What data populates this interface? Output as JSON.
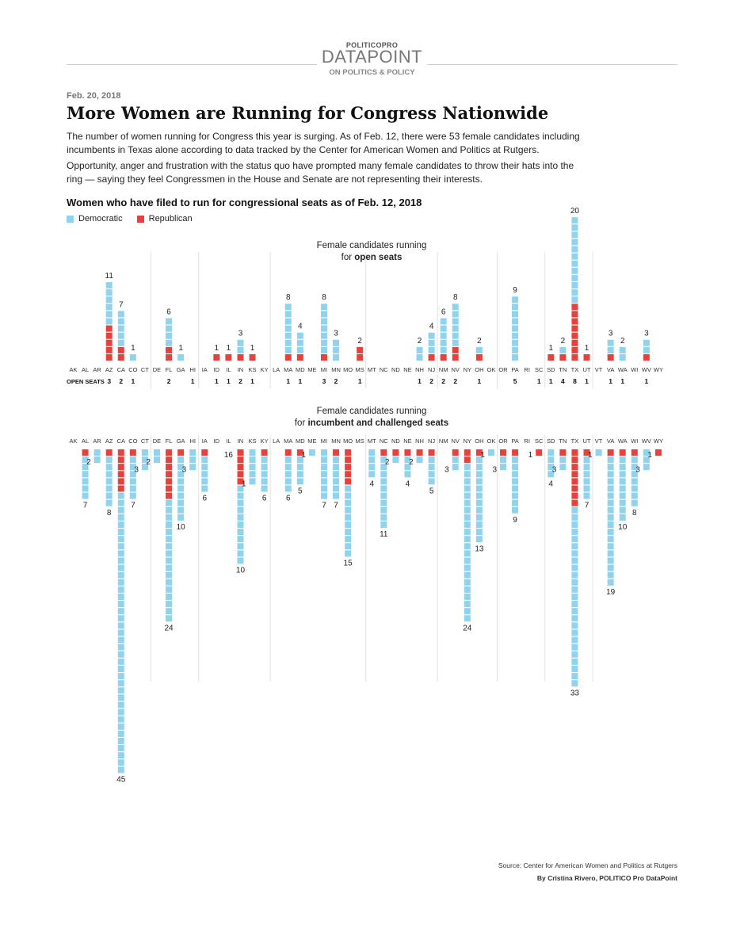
{
  "header": {
    "brand_politico": "POLITICOPRO",
    "brand_datapoint": "DATAPOINT",
    "brand_sub": "ON POLITICS & POLICY",
    "date": "Feb. 20, 2018",
    "title": "More Women are Running for Congress Nationwide",
    "paragraph1": "The number of women running for Congress this year is surging. As of Feb. 12, there were 53 female candidates including incumbents in Texas alone according to data tracked by the Center for American Women and Politics at Rutgers.",
    "paragraph2": "Opportunity, anger and frustration with the status quo have prompted many female candidates to throw their hats into the ring — saying they feel Congressmen in the House and Senate are not representing their interests.",
    "subtitle": "Women who have filed to run for congressional seats as of Feb. 12, 2018"
  },
  "legend": {
    "dem_label": "Democratic",
    "rep_label": "Republican"
  },
  "colors": {
    "dem": "#8fd3ef",
    "rep": "#e8413b",
    "grid": "#e2e2e2"
  },
  "footer": {
    "source": "Source: Center for American Women and Politics at Rutgers",
    "byline": "By Cristina Rivero, POLITICO Pro DataPoint"
  },
  "chart_data": [
    {
      "type": "waffle-column",
      "title_line1": "Female candidates running",
      "title_pre": "for ",
      "title_bold": "open seats",
      "open_seats_label": "OPEN SEATS",
      "states": [
        "AK",
        "AL",
        "AR",
        "AZ",
        "CA",
        "CO",
        "CT",
        "DE",
        "FL",
        "GA",
        "HI",
        "IA",
        "ID",
        "IL",
        "IN",
        "KS",
        "KY",
        "LA",
        "MA",
        "MD",
        "ME",
        "MI",
        "MN",
        "MO",
        "MS",
        "MT",
        "NC",
        "ND",
        "NE",
        "NH",
        "NJ",
        "NM",
        "NV",
        "NY",
        "OH",
        "OK",
        "OR",
        "PA",
        "RI",
        "SC",
        "SD",
        "TN",
        "TX",
        "UT",
        "VT",
        "VA",
        "WA",
        "WI",
        "WV",
        "WY"
      ],
      "series": [
        {
          "name": "Democratic",
          "values": [
            0,
            0,
            0,
            6,
            5,
            1,
            0,
            0,
            4,
            1,
            0,
            0,
            0,
            0,
            2,
            0,
            0,
            0,
            7,
            3,
            0,
            7,
            3,
            0,
            0,
            0,
            0,
            0,
            0,
            2,
            3,
            5,
            6,
            0,
            1,
            0,
            0,
            9,
            0,
            0,
            0,
            1,
            12,
            0,
            0,
            2,
            2,
            0,
            2,
            0
          ]
        },
        {
          "name": "Republican",
          "values": [
            0,
            0,
            0,
            5,
            2,
            0,
            0,
            0,
            2,
            0,
            0,
            0,
            1,
            1,
            1,
            1,
            0,
            0,
            1,
            1,
            0,
            1,
            0,
            0,
            2,
            0,
            0,
            0,
            0,
            0,
            1,
            1,
            2,
            0,
            1,
            0,
            0,
            0,
            0,
            0,
            1,
            1,
            8,
            1,
            0,
            1,
            0,
            0,
            1,
            0
          ]
        }
      ],
      "totals": [
        0,
        0,
        0,
        11,
        7,
        1,
        0,
        0,
        6,
        1,
        0,
        0,
        1,
        1,
        3,
        1,
        0,
        0,
        8,
        4,
        0,
        8,
        3,
        0,
        2,
        0,
        0,
        0,
        0,
        2,
        4,
        6,
        8,
        0,
        2,
        0,
        0,
        9,
        0,
        0,
        1,
        2,
        20,
        1,
        0,
        3,
        2,
        0,
        3,
        0
      ],
      "open_seats": [
        0,
        0,
        0,
        3,
        2,
        1,
        0,
        0,
        2,
        0,
        1,
        0,
        1,
        1,
        2,
        1,
        0,
        0,
        1,
        1,
        0,
        3,
        2,
        0,
        1,
        0,
        0,
        0,
        0,
        1,
        2,
        2,
        2,
        0,
        1,
        0,
        0,
        5,
        0,
        1,
        1,
        4,
        8,
        1,
        0,
        1,
        1,
        0,
        1,
        0
      ]
    },
    {
      "type": "waffle-column",
      "title_line1": "Female candidates running",
      "title_pre": "for ",
      "title_bold": "incumbent and challenged seats",
      "states": [
        "AK",
        "AL",
        "AR",
        "AZ",
        "CA",
        "CO",
        "CT",
        "DE",
        "FL",
        "GA",
        "HI",
        "IA",
        "ID",
        "IL",
        "IN",
        "KS",
        "KY",
        "LA",
        "MA",
        "MD",
        "ME",
        "MI",
        "MN",
        "MO",
        "MS",
        "MT",
        "NC",
        "ND",
        "NE",
        "NH",
        "NJ",
        "NM",
        "NV",
        "NY",
        "OH",
        "OK",
        "OR",
        "PA",
        "RI",
        "SC",
        "SD",
        "TN",
        "TX",
        "UT",
        "VT",
        "VA",
        "WA",
        "WI",
        "WV",
        "WY"
      ],
      "series": [
        {
          "name": "Republican",
          "values": [
            0,
            1,
            0,
            1,
            6,
            1,
            0,
            0,
            7,
            1,
            0,
            1,
            0,
            0,
            5,
            0,
            1,
            0,
            1,
            1,
            0,
            0,
            1,
            5,
            0,
            0,
            1,
            1,
            1,
            1,
            1,
            0,
            1,
            2,
            1,
            0,
            1,
            1,
            0,
            1,
            0,
            1,
            8,
            1,
            0,
            1,
            1,
            1,
            0,
            1
          ]
        },
        {
          "name": "Democratic",
          "values": [
            0,
            6,
            2,
            7,
            39,
            6,
            3,
            2,
            17,
            9,
            3,
            5,
            0,
            0,
            11,
            5,
            5,
            0,
            5,
            4,
            1,
            7,
            6,
            10,
            0,
            4,
            10,
            1,
            3,
            1,
            4,
            0,
            2,
            22,
            12,
            1,
            2,
            8,
            0,
            0,
            4,
            2,
            25,
            6,
            1,
            18,
            9,
            7,
            3,
            0
          ]
        }
      ],
      "totals": [
        0,
        7,
        2,
        8,
        45,
        7,
        3,
        2,
        24,
        10,
        3,
        6,
        0,
        16,
        10,
        1,
        6,
        0,
        6,
        5,
        1,
        7,
        7,
        15,
        0,
        4,
        11,
        2,
        4,
        2,
        5,
        0,
        3,
        24,
        13,
        1,
        3,
        9,
        0,
        1,
        4,
        3,
        33,
        7,
        1,
        19,
        10,
        8,
        3,
        1
      ]
    }
  ]
}
